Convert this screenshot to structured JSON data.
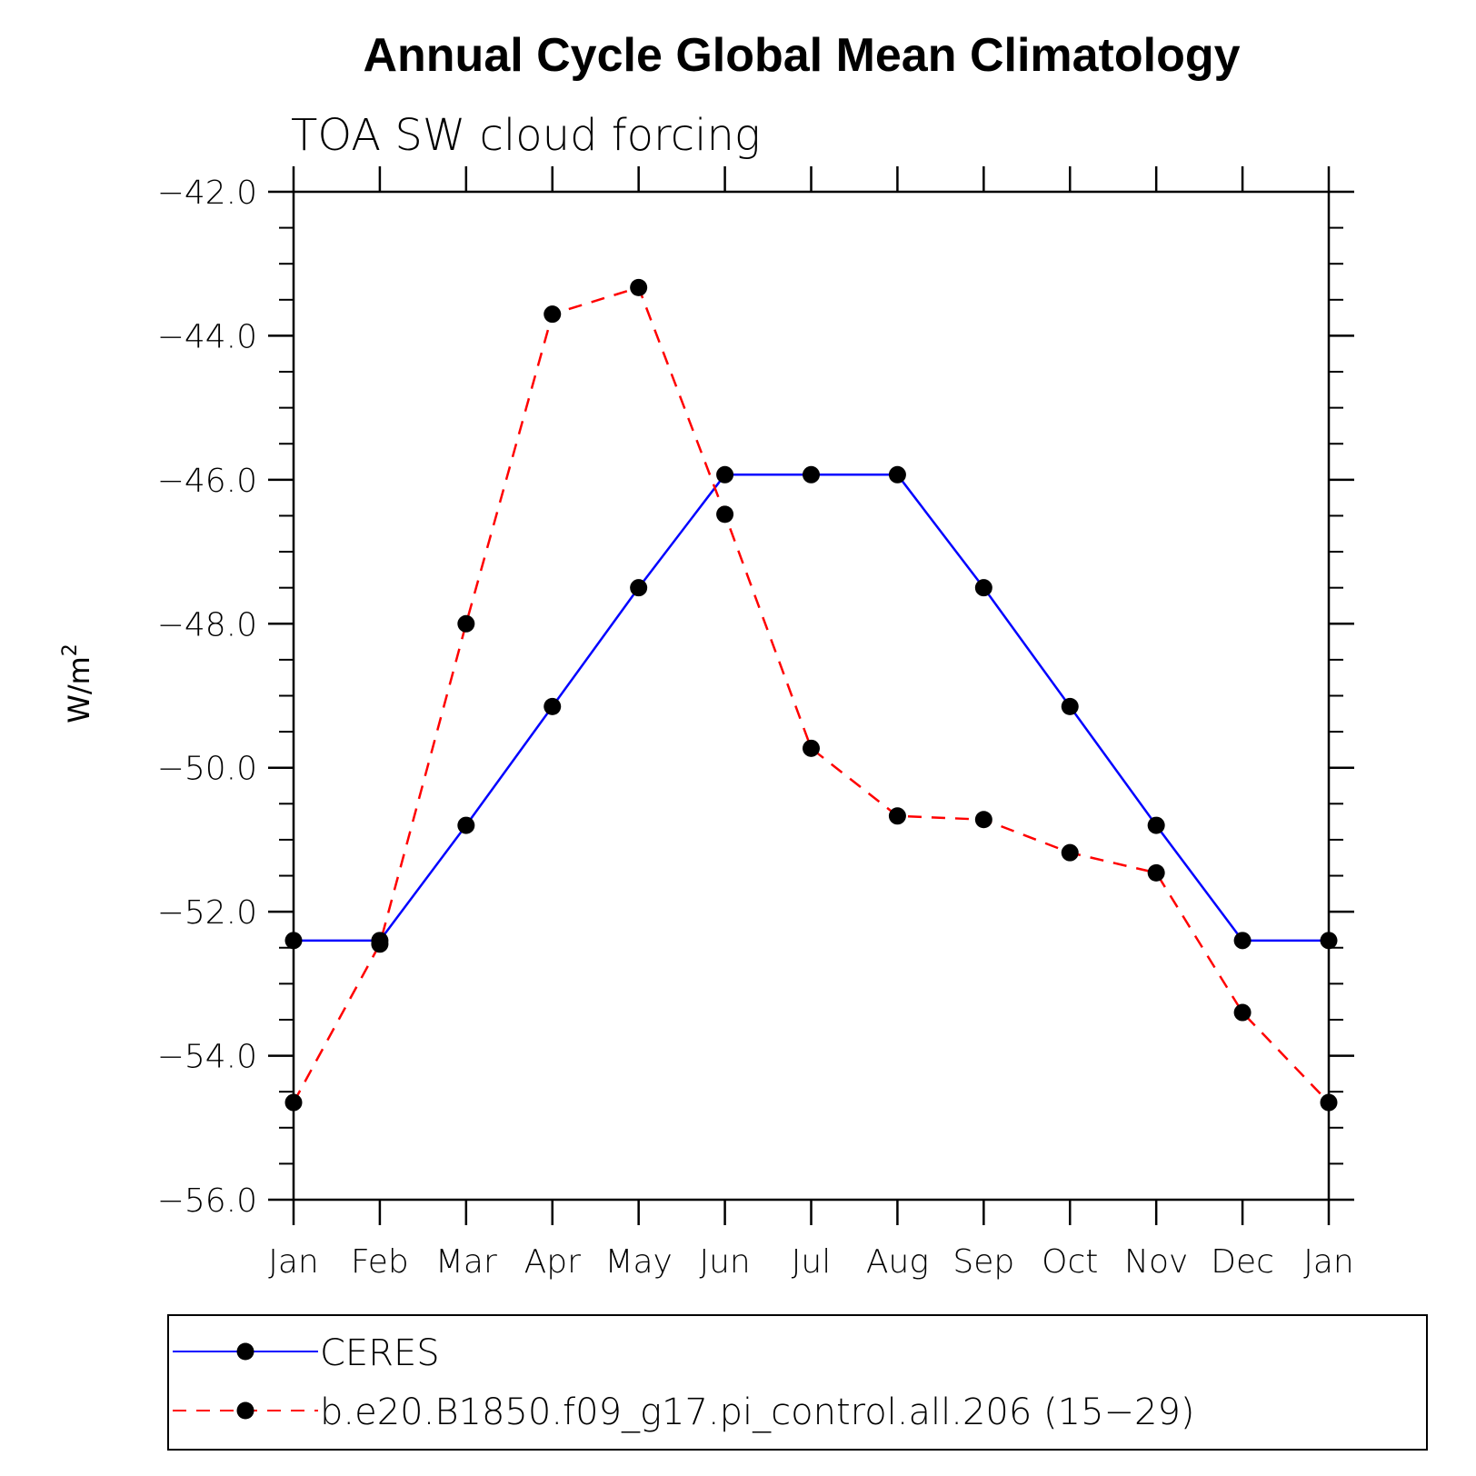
{
  "chart_data": {
    "type": "line",
    "title": "Annual Cycle Global Mean Climatology",
    "subtitle": "TOA SW cloud forcing",
    "ylabel": "W/m",
    "ylabel_superscript": "2",
    "ylim": [
      -56.0,
      -42.0
    ],
    "yticks": [
      -42.0,
      -44.0,
      -46.0,
      -48.0,
      -50.0,
      -52.0,
      -54.0,
      -56.0
    ],
    "ytick_labels": [
      "−42.0",
      "−44.0",
      "−46.0",
      "−48.0",
      "−50.0",
      "−52.0",
      "−54.0",
      "−56.0"
    ],
    "categories": [
      "Jan",
      "Feb",
      "Mar",
      "Apr",
      "May",
      "Jun",
      "Jul",
      "Aug",
      "Sep",
      "Oct",
      "Nov",
      "Dec",
      "Jan"
    ],
    "series": [
      {
        "name": "CERES",
        "color": "#0000ff",
        "dash": "solid",
        "values": [
          -52.4,
          -52.4,
          -50.8,
          -49.15,
          -47.5,
          -45.93,
          -45.93,
          -45.93,
          -47.5,
          -49.15,
          -50.8,
          -52.4,
          -52.4
        ]
      },
      {
        "name": "b.e20.B1850.f09_g17.pi_control.all.206 (15−29)",
        "color": "#ff0000",
        "dash": "dashed",
        "values": [
          -54.65,
          -52.45,
          -48.0,
          -43.7,
          -43.33,
          -46.48,
          -49.73,
          -50.67,
          -50.72,
          -51.18,
          -51.46,
          -53.4,
          -54.65
        ]
      }
    ],
    "legend_position": "bottom"
  }
}
